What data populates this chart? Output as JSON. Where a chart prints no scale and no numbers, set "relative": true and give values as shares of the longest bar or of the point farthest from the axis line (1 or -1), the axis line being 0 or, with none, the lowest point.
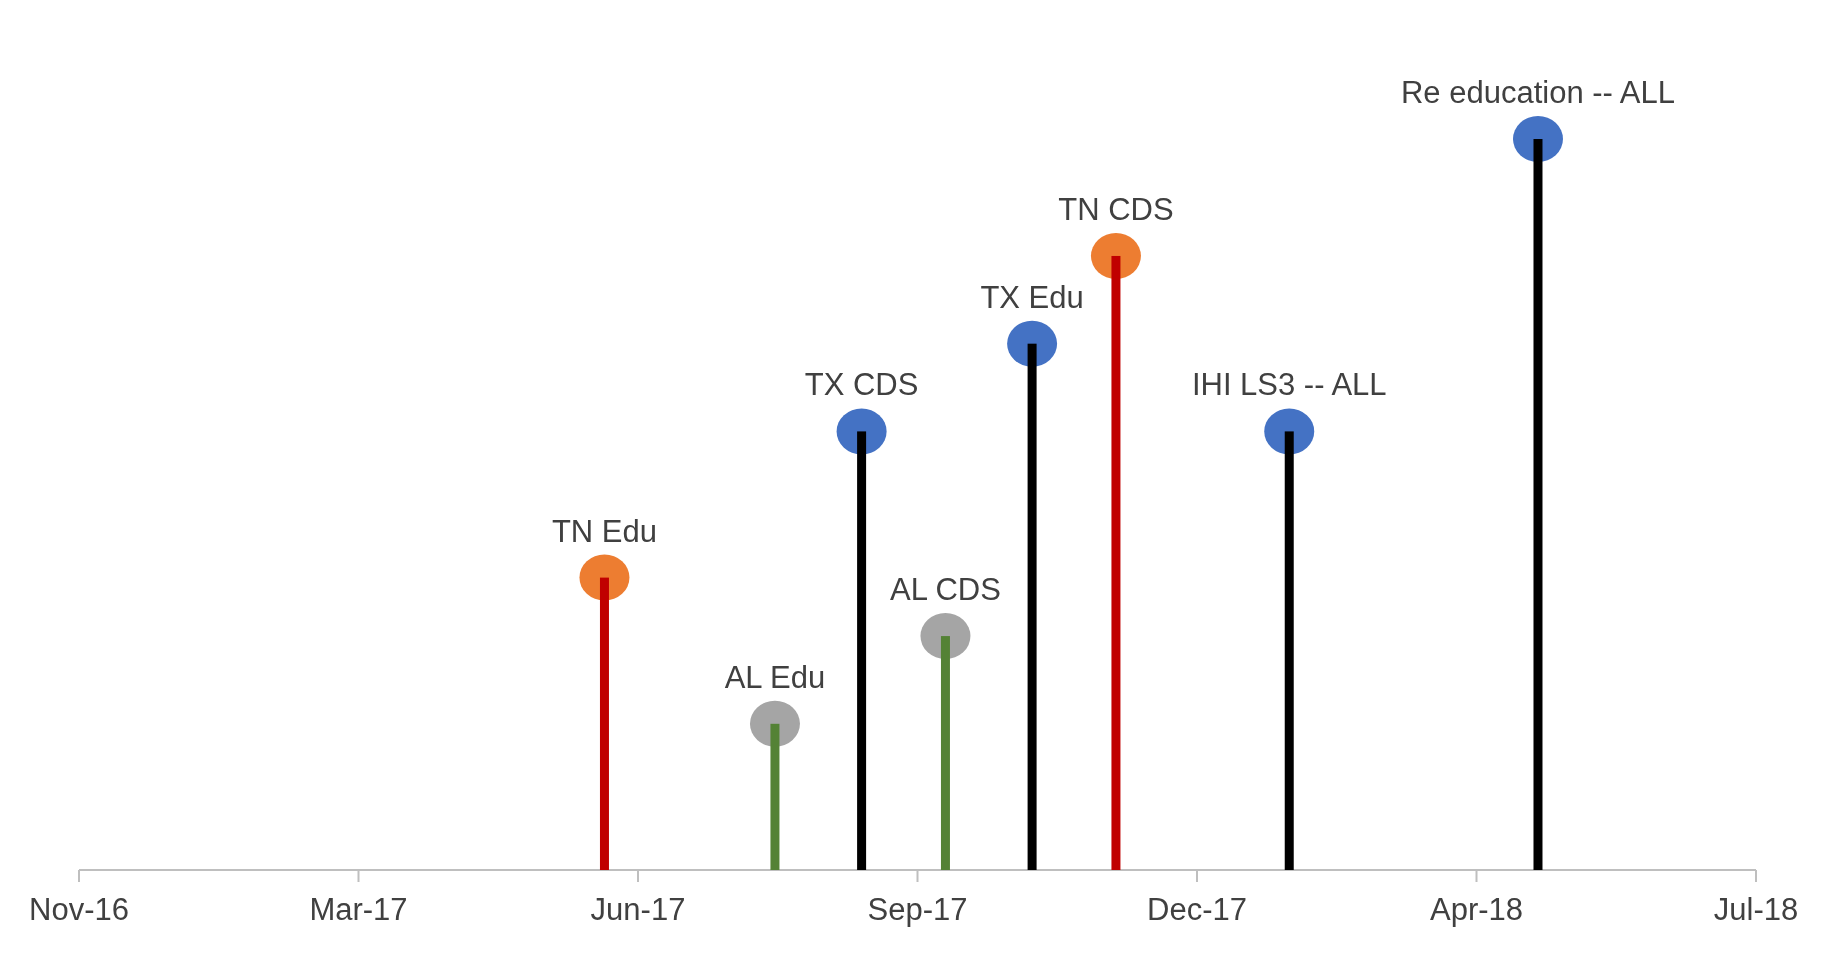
{
  "chart_data": {
    "type": "lollipop",
    "relative": true,
    "marker": "circle",
    "xlim": [
      "2016-11-25",
      "2018-07-18"
    ],
    "xticks": [
      {
        "value": "2016-11-25",
        "label": "Nov-16"
      },
      {
        "value": "2017-03-05",
        "label": "Mar-17"
      },
      {
        "value": "2017-06-13",
        "label": "Jun-17"
      },
      {
        "value": "2017-09-21",
        "label": "Sep-17"
      },
      {
        "value": "2017-12-30",
        "label": "Dec-17"
      },
      {
        "value": "2018-04-09",
        "label": "Apr-18"
      },
      {
        "value": "2018-07-18",
        "label": "Jul-18"
      }
    ],
    "series": [
      {
        "type": "bar",
        "x": [
          "2017-06-01",
          "2017-08-01",
          "2017-09-01",
          "2017-10-01",
          "2017-11-01",
          "2017-12-01",
          "2018-02-01",
          "2018-05-01"
        ],
        "values": [
          0.4,
          0.2,
          0.6,
          0.32,
          0.72,
          0.84,
          0.6,
          1
        ],
        "colors": [
          "#c00000",
          "#548235",
          "#000000",
          "#548235",
          "#000000",
          "#c00000",
          "#000000",
          "#000000"
        ]
      },
      {
        "type": "scatter",
        "x": [
          "2017-06-01",
          "2017-08-01",
          "2017-09-01",
          "2017-10-01",
          "2017-11-01",
          "2017-12-01",
          "2018-02-01",
          "2018-05-01"
        ],
        "values": [
          0.4,
          0.2,
          0.6,
          0.32,
          0.72,
          0.84,
          0.6,
          1
        ],
        "colors": [
          "#ed7d31",
          "#a5a5a5",
          "#4472c4",
          "#a5a5a5",
          "#4472c4",
          "#ed7d31",
          "#4472c4",
          "#4472c4"
        ]
      }
    ],
    "annotations": [
      {
        "text": "TN Edu",
        "x": "2017-06-01",
        "y": 0.4
      },
      {
        "text": "AL Edu",
        "x": "2017-08-01",
        "y": 0.2
      },
      {
        "text": "TX CDS",
        "x": "2017-09-01",
        "y": 0.6
      },
      {
        "text": "AL CDS",
        "x": "2017-10-01",
        "y": 0.32
      },
      {
        "text": "TX Edu",
        "x": "2017-11-01",
        "y": 0.72
      },
      {
        "text": "TN CDS",
        "x": "2017-12-01",
        "y": 0.84
      },
      {
        "text": "IHI LS3 -- ALL",
        "x": "2018-02-01",
        "y": 0.6
      },
      {
        "text": "Re education -- ALL",
        "x": "2018-05-01",
        "y": 1
      }
    ]
  }
}
